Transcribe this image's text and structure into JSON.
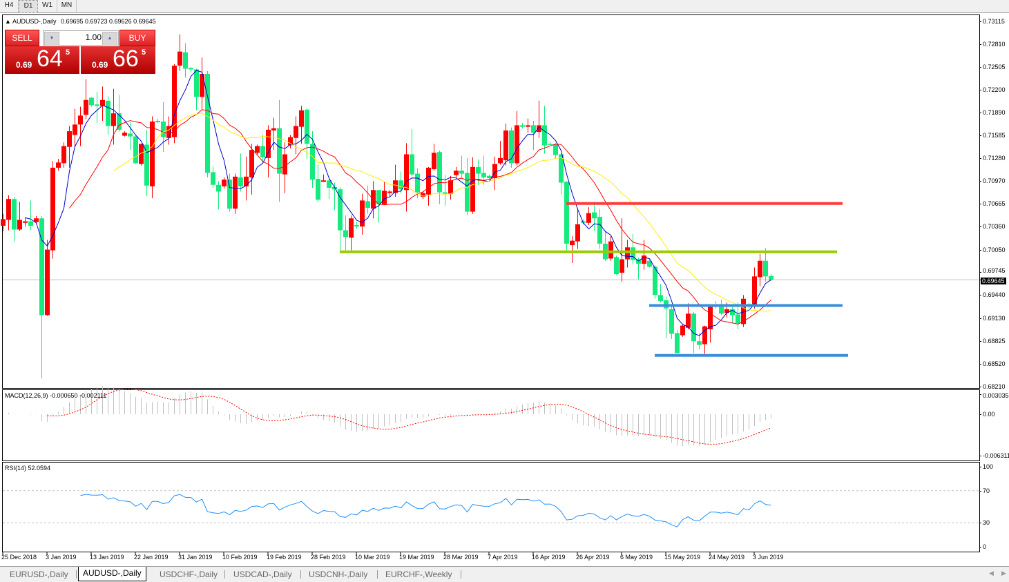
{
  "toolbar": {
    "timeframes": [
      "H4",
      "D1",
      "W1",
      "MN"
    ],
    "active": "D1"
  },
  "chart": {
    "header": "AUDUSD-,Daily",
    "ohlc_readout": "0.69695 0.69723 0.69626 0.69645",
    "one_click": {
      "sell_label": "SELL",
      "buy_label": "BUY",
      "lot": "1.00",
      "sell_prefix": "0.69",
      "sell_big": "64",
      "sell_sup": "5",
      "buy_prefix": "0.69",
      "buy_big": "66",
      "buy_sup": "5"
    },
    "current_price_label": "0.69645"
  },
  "colors": {
    "bull": "#ff0000",
    "bear": "#14ea7d",
    "ma_fast": "#0000cc",
    "ma_mid": "#ff0000",
    "ma_slow": "#ffee00",
    "macd_hist": "#c0c0c0",
    "macd_signal": "#ff0000",
    "rsi": "#1e90ff",
    "line_resistance": "#ff3b3b",
    "line_support_green": "#99cc00",
    "line_support_blue": "#3a8fdc"
  },
  "chart_data": [
    {
      "type": "candlestick",
      "symbol": "AUDUSD-",
      "timeframe": "Daily",
      "ylim": [
        0.6821,
        0.73115
      ],
      "y_ticks": [
        "0.73115",
        "0.72810",
        "0.72505",
        "0.72200",
        "0.71890",
        "0.71585",
        "0.71280",
        "0.70970",
        "0.70665",
        "0.70360",
        "0.70050",
        "0.69745",
        "0.69440",
        "0.69130",
        "0.68825",
        "0.68520",
        "0.68210"
      ],
      "x_tick_labels": [
        {
          "bar": 0,
          "label": "25 Dec 2018"
        },
        {
          "bar": 8,
          "label": "3 Jan 2019"
        },
        {
          "bar": 16,
          "label": "13 Jan 2019"
        },
        {
          "bar": 24,
          "label": "22 Jan 2019"
        },
        {
          "bar": 32,
          "label": "31 Jan 2019"
        },
        {
          "bar": 40,
          "label": "10 Feb 2019"
        },
        {
          "bar": 48,
          "label": "19 Feb 2019"
        },
        {
          "bar": 56,
          "label": "28 Feb 2019"
        },
        {
          "bar": 64,
          "label": "10 Mar 2019"
        },
        {
          "bar": 72,
          "label": "19 Mar 2019"
        },
        {
          "bar": 80,
          "label": "28 Mar 2019"
        },
        {
          "bar": 88,
          "label": "7 Apr 2019"
        },
        {
          "bar": 96,
          "label": "16 Apr 2019"
        },
        {
          "bar": 104,
          "label": "26 Apr 2019"
        },
        {
          "bar": 112,
          "label": "6 May 2019"
        },
        {
          "bar": 120,
          "label": "15 May 2019"
        },
        {
          "bar": 128,
          "label": "24 May 2019"
        },
        {
          "bar": 136,
          "label": "3 Jun 2019"
        }
      ],
      "ohlc": [
        [
          0.7037,
          0.7053,
          0.703,
          0.7046
        ],
        [
          0.7045,
          0.7078,
          0.7031,
          0.7073
        ],
        [
          0.7073,
          0.7076,
          0.7016,
          0.7032
        ],
        [
          0.7032,
          0.7069,
          0.703,
          0.7045
        ],
        [
          0.7041,
          0.7048,
          0.7036,
          0.7043
        ],
        [
          0.7043,
          0.7071,
          0.7031,
          0.7037
        ],
        [
          0.7042,
          0.705,
          0.7039,
          0.7047
        ],
        [
          0.7047,
          0.705,
          0.6832,
          0.6917
        ],
        [
          0.6917,
          0.7018,
          0.6916,
          0.7005
        ],
        [
          0.7004,
          0.7124,
          0.6993,
          0.7115
        ],
        [
          0.7115,
          0.7127,
          0.7111,
          0.7122
        ],
        [
          0.7121,
          0.7149,
          0.7115,
          0.7144
        ],
        [
          0.7143,
          0.7171,
          0.7115,
          0.7164
        ],
        [
          0.7159,
          0.7194,
          0.7143,
          0.7173
        ],
        [
          0.7173,
          0.7197,
          0.7144,
          0.7185
        ],
        [
          0.7186,
          0.7234,
          0.718,
          0.7206
        ],
        [
          0.7209,
          0.721,
          0.7197,
          0.7199
        ],
        [
          0.72,
          0.7217,
          0.7175,
          0.7198
        ],
        [
          0.7198,
          0.7224,
          0.7178,
          0.7206
        ],
        [
          0.7205,
          0.7211,
          0.7159,
          0.7171
        ],
        [
          0.7171,
          0.7221,
          0.7146,
          0.7188
        ],
        [
          0.7188,
          0.7213,
          0.7163,
          0.7166
        ],
        [
          0.7158,
          0.7164,
          0.7157,
          0.7162
        ],
        [
          0.7161,
          0.7176,
          0.7139,
          0.7157
        ],
        [
          0.7157,
          0.7159,
          0.712,
          0.7121
        ],
        [
          0.712,
          0.7147,
          0.7118,
          0.7147
        ],
        [
          0.7146,
          0.7166,
          0.7077,
          0.7091
        ],
        [
          0.709,
          0.7184,
          0.7074,
          0.7177
        ],
        [
          0.7178,
          0.7181,
          0.7175,
          0.7176
        ],
        [
          0.7177,
          0.7203,
          0.7136,
          0.7156
        ],
        [
          0.7155,
          0.7184,
          0.7146,
          0.7171
        ],
        [
          0.7156,
          0.7254,
          0.7148,
          0.7252
        ],
        [
          0.7252,
          0.7294,
          0.7245,
          0.7271
        ],
        [
          0.727,
          0.7282,
          0.7236,
          0.7248
        ],
        [
          0.7249,
          0.725,
          0.7243,
          0.7247
        ],
        [
          0.7247,
          0.7248,
          0.7192,
          0.721
        ],
        [
          0.721,
          0.7263,
          0.7192,
          0.7241
        ],
        [
          0.7241,
          0.7245,
          0.7102,
          0.7108
        ],
        [
          0.7109,
          0.7117,
          0.7088,
          0.7092
        ],
        [
          0.7092,
          0.7097,
          0.7059,
          0.7083
        ],
        [
          0.709,
          0.7102,
          0.7087,
          0.7099
        ],
        [
          0.7099,
          0.7107,
          0.7056,
          0.706
        ],
        [
          0.706,
          0.7107,
          0.7053,
          0.7103
        ],
        [
          0.7102,
          0.7134,
          0.7083,
          0.709
        ],
        [
          0.709,
          0.713,
          0.7071,
          0.7103
        ],
        [
          0.7102,
          0.7147,
          0.7079,
          0.7139
        ],
        [
          0.7135,
          0.7146,
          0.7132,
          0.7144
        ],
        [
          0.7144,
          0.7159,
          0.7122,
          0.7129
        ],
        [
          0.7128,
          0.7172,
          0.7102,
          0.7166
        ],
        [
          0.7165,
          0.7182,
          0.7139,
          0.7168
        ],
        [
          0.7168,
          0.7206,
          0.7069,
          0.7107
        ],
        [
          0.7106,
          0.7149,
          0.7081,
          0.7133
        ],
        [
          0.7145,
          0.7159,
          0.7141,
          0.7156
        ],
        [
          0.7155,
          0.7184,
          0.7133,
          0.7171
        ],
        [
          0.717,
          0.7198,
          0.7147,
          0.7192
        ],
        [
          0.7193,
          0.7195,
          0.7127,
          0.7147
        ],
        [
          0.7147,
          0.7164,
          0.7088,
          0.7099
        ],
        [
          0.71,
          0.712,
          0.7069,
          0.7072
        ],
        [
          0.7096,
          0.7106,
          0.7096,
          0.7098
        ],
        [
          0.7098,
          0.7102,
          0.7073,
          0.7088
        ],
        [
          0.7089,
          0.7095,
          0.7058,
          0.7086
        ],
        [
          0.7086,
          0.7089,
          0.7004,
          0.7031
        ],
        [
          0.7031,
          0.7051,
          0.7004,
          0.7022
        ],
        [
          0.7021,
          0.7051,
          0.7004,
          0.7047
        ],
        [
          0.7038,
          0.7042,
          0.7033,
          0.7036
        ],
        [
          0.7036,
          0.708,
          0.7025,
          0.7071
        ],
        [
          0.707,
          0.7091,
          0.7053,
          0.7061
        ],
        [
          0.706,
          0.7097,
          0.7047,
          0.7085
        ],
        [
          0.7085,
          0.7085,
          0.7041,
          0.7066
        ],
        [
          0.7066,
          0.7096,
          0.7065,
          0.7084
        ],
        [
          0.7081,
          0.7085,
          0.7076,
          0.7083
        ],
        [
          0.7081,
          0.7119,
          0.7076,
          0.7098
        ],
        [
          0.7098,
          0.711,
          0.7081,
          0.7086
        ],
        [
          0.7085,
          0.7148,
          0.7056,
          0.7133
        ],
        [
          0.7133,
          0.7167,
          0.7104,
          0.7106
        ],
        [
          0.7107,
          0.7114,
          0.7074,
          0.7082
        ],
        [
          0.7076,
          0.7083,
          0.7073,
          0.7081
        ],
        [
          0.7079,
          0.7116,
          0.7064,
          0.7115
        ],
        [
          0.7113,
          0.7147,
          0.7111,
          0.7135
        ],
        [
          0.7136,
          0.7138,
          0.7066,
          0.7082
        ],
        [
          0.7082,
          0.7105,
          0.7064,
          0.708
        ],
        [
          0.708,
          0.7104,
          0.7072,
          0.7098
        ],
        [
          0.7105,
          0.7116,
          0.7101,
          0.7111
        ],
        [
          0.7111,
          0.7131,
          0.71,
          0.7107
        ],
        [
          0.7108,
          0.7128,
          0.7051,
          0.7056
        ],
        [
          0.7056,
          0.7129,
          0.7053,
          0.7116
        ],
        [
          0.7116,
          0.7126,
          0.7092,
          0.7107
        ],
        [
          0.7108,
          0.7131,
          0.7092,
          0.7102
        ],
        [
          0.7104,
          0.7106,
          0.7099,
          0.7101
        ],
        [
          0.7101,
          0.713,
          0.7085,
          0.712
        ],
        [
          0.7121,
          0.7151,
          0.7119,
          0.7128
        ],
        [
          0.7125,
          0.7174,
          0.7118,
          0.7165
        ],
        [
          0.7165,
          0.7169,
          0.7115,
          0.7121
        ],
        [
          0.7121,
          0.7191,
          0.7118,
          0.7172
        ],
        [
          0.7172,
          0.7175,
          0.7168,
          0.717
        ],
        [
          0.717,
          0.7181,
          0.7162,
          0.7172
        ],
        [
          0.7172,
          0.7178,
          0.7139,
          0.7162
        ],
        [
          0.7163,
          0.7205,
          0.7155,
          0.7172
        ],
        [
          0.7172,
          0.7198,
          0.7134,
          0.7145
        ],
        [
          0.7147,
          0.715,
          0.7146,
          0.7146
        ],
        [
          0.7146,
          0.7148,
          0.7127,
          0.7132
        ],
        [
          0.7133,
          0.7134,
          0.7079,
          0.7095
        ],
        [
          0.7096,
          0.7097,
          0.7,
          0.7013
        ],
        [
          0.7011,
          0.7023,
          0.6987,
          0.7017
        ],
        [
          0.7016,
          0.706,
          0.7006,
          0.7039
        ],
        [
          0.7043,
          0.7046,
          0.7039,
          0.7041
        ],
        [
          0.7041,
          0.7062,
          0.7038,
          0.7054
        ],
        [
          0.7055,
          0.7066,
          0.703,
          0.7047
        ],
        [
          0.7049,
          0.706,
          0.7006,
          0.7013
        ],
        [
          0.7013,
          0.7029,
          0.699,
          0.6992
        ],
        [
          0.6993,
          0.7023,
          0.699,
          0.7016
        ],
        [
          0.6995,
          0.6997,
          0.6971,
          0.6972
        ],
        [
          0.6974,
          0.7047,
          0.6962,
          0.6992
        ],
        [
          0.6992,
          0.7018,
          0.6981,
          0.7008
        ],
        [
          0.7008,
          0.7026,
          0.6985,
          0.6991
        ],
        [
          0.6992,
          0.6994,
          0.6965,
          0.6986
        ],
        [
          0.6986,
          0.7018,
          0.6978,
          0.6997
        ],
        [
          0.699,
          0.6992,
          0.6981,
          0.6982
        ],
        [
          0.6982,
          0.6984,
          0.6939,
          0.6944
        ],
        [
          0.6944,
          0.6959,
          0.6934,
          0.6936
        ],
        [
          0.6937,
          0.6942,
          0.6886,
          0.6926
        ],
        [
          0.6925,
          0.6932,
          0.6885,
          0.6892
        ],
        [
          0.6893,
          0.6897,
          0.6866,
          0.6866
        ],
        [
          0.689,
          0.6904,
          0.6888,
          0.6903
        ],
        [
          0.69,
          0.6933,
          0.6898,
          0.6919
        ],
        [
          0.6919,
          0.6921,
          0.6866,
          0.6882
        ],
        [
          0.6882,
          0.6893,
          0.6871,
          0.6877
        ],
        [
          0.6878,
          0.6903,
          0.6865,
          0.6902
        ],
        [
          0.6898,
          0.693,
          0.688,
          0.6928
        ],
        [
          0.6931,
          0.6936,
          0.6926,
          0.6928
        ],
        [
          0.6928,
          0.6938,
          0.6917,
          0.6919
        ],
        [
          0.692,
          0.6934,
          0.6914,
          0.6925
        ],
        [
          0.6925,
          0.693,
          0.6906,
          0.6917
        ],
        [
          0.6918,
          0.6934,
          0.6898,
          0.6906
        ],
        [
          0.6905,
          0.6944,
          0.6901,
          0.6939
        ],
        [
          0.6932,
          0.6934,
          0.6926,
          0.693
        ],
        [
          0.693,
          0.6981,
          0.6926,
          0.6969
        ],
        [
          0.6968,
          0.6999,
          0.6956,
          0.699
        ],
        [
          0.699,
          0.7007,
          0.6962,
          0.6969
        ],
        [
          0.69695,
          0.69723,
          0.69626,
          0.69645
        ]
      ],
      "current_price": 0.69645,
      "horizontal_lines": [
        {
          "price": 0.7067,
          "from_bar": 102,
          "to_bar": 152,
          "color_key": "line_resistance"
        },
        {
          "price": 0.7002,
          "from_bar": 61,
          "to_bar": 151,
          "color_key": "line_support_green"
        },
        {
          "price": 0.693,
          "from_bar": 117,
          "to_bar": 152,
          "color_key": "line_support_blue"
        },
        {
          "price": 0.6863,
          "from_bar": 118,
          "to_bar": 153,
          "color_key": "line_support_blue"
        }
      ]
    },
    {
      "type": "line",
      "title": "MACD(12,26,9) -0.000650 -0.002111",
      "ylim": [
        -0.006311,
        0.003035
      ],
      "y_ticks": [
        "0.003035",
        "0.00",
        "-0.006311"
      ]
    },
    {
      "type": "line",
      "title": "RSI(14) 52.0594",
      "ylim": [
        0,
        100
      ],
      "levels": [
        70,
        30
      ],
      "y_ticks": [
        "100",
        "70",
        "30",
        "0"
      ]
    }
  ],
  "tabs": [
    {
      "label": "EURUSD-,Daily"
    },
    {
      "label": "AUDUSD-,Daily",
      "active": true
    },
    {
      "label": "USDCHF-,Daily"
    },
    {
      "label": "USDCAD-,Daily"
    },
    {
      "label": "USDCNH-,Daily"
    },
    {
      "label": "EURCHF-,Weekly"
    }
  ]
}
